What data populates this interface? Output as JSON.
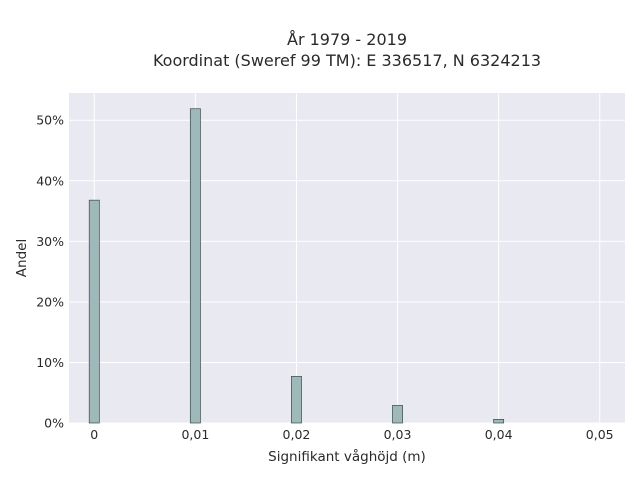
{
  "chart_data": {
    "type": "bar",
    "title_lines": [
      "År 1979 - 2019",
      "Koordinat (Sweref 99 TM): E 336517, N 6324213"
    ],
    "xlabel": "Signifikant våghöjd (m)",
    "ylabel": "Andel",
    "x_ticks": [
      "0",
      "0,01",
      "0,02",
      "0,03",
      "0,04",
      "0,05"
    ],
    "x_tick_values": [
      0,
      0.01,
      0.02,
      0.03,
      0.04,
      0.05
    ],
    "y_ticks": [
      "0%",
      "10%",
      "20%",
      "30%",
      "40%",
      "50%"
    ],
    "y_tick_values": [
      0,
      0.1,
      0.2,
      0.3,
      0.4,
      0.5
    ],
    "xlim": [
      -0.0025,
      0.0525
    ],
    "ylim": [
      0,
      0.545
    ],
    "bar_width": 0.001,
    "x": [
      0,
      0.01,
      0.02,
      0.03,
      0.04
    ],
    "values": [
      0.368,
      0.519,
      0.077,
      0.029,
      0.006
    ],
    "grid": true,
    "colors": {
      "plot_background": "#e9e9f1",
      "grid": "#ffffff",
      "bar_fill": "#9fb8ba",
      "bar_edge": "#3a4a4a"
    }
  }
}
